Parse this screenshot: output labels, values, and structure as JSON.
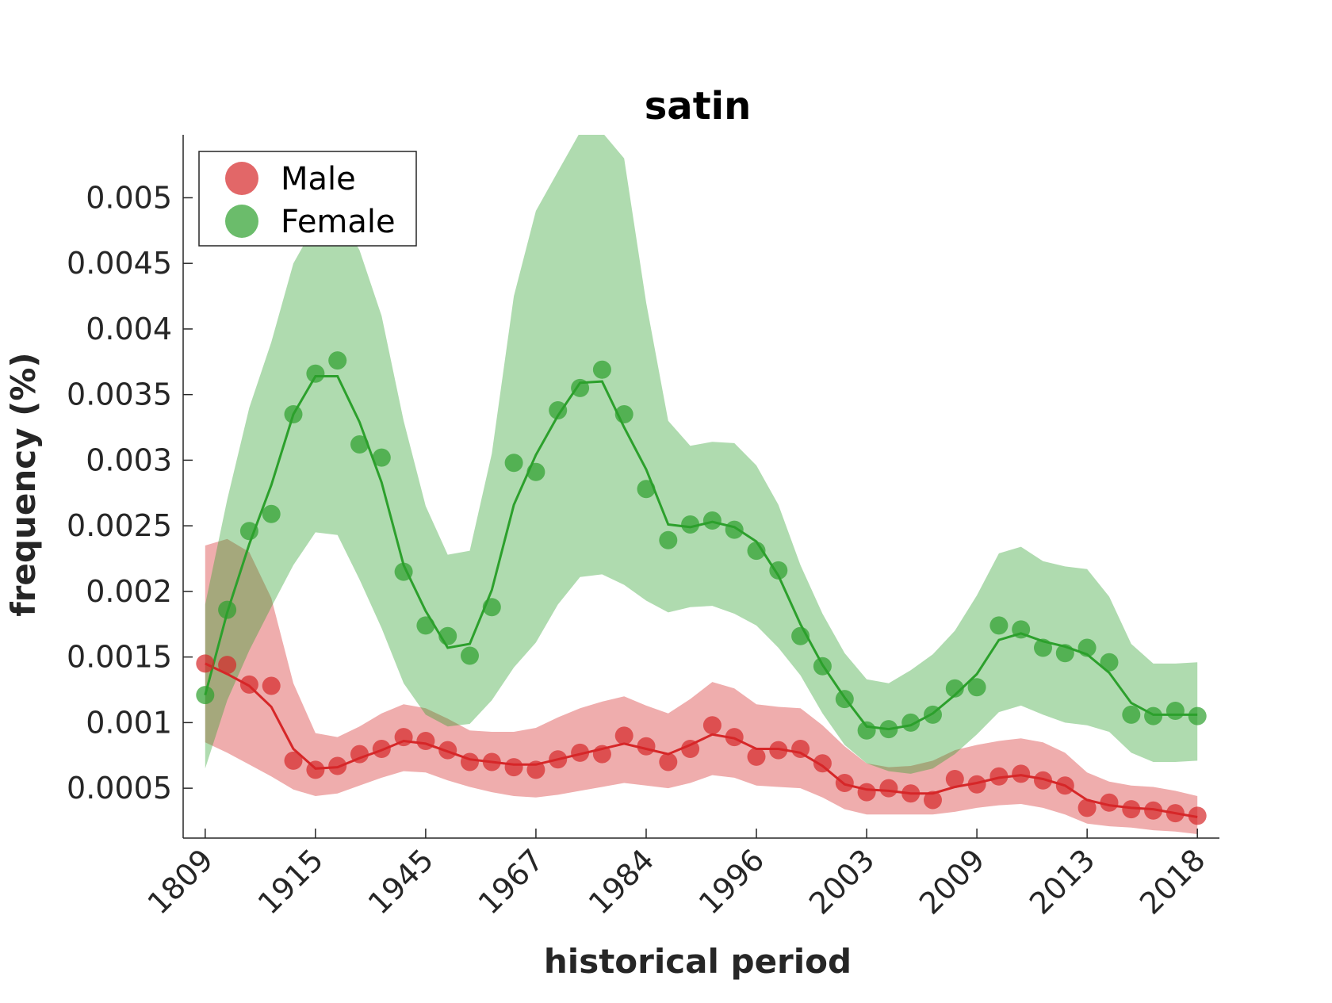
{
  "chart_data": {
    "type": "line",
    "title": "satin",
    "xlabel": "historical period",
    "ylabel": "frequency (%)",
    "x_tick_labels": [
      "1809",
      "1915",
      "1945",
      "1967",
      "1984",
      "1996",
      "2003",
      "2009",
      "2013",
      "2018"
    ],
    "y_ticks": [
      0.0005,
      0.001,
      0.0015,
      0.002,
      0.0025,
      0.003,
      0.0035,
      0.004,
      0.0045,
      0.005
    ],
    "y_tick_labels": [
      "0.0005",
      "0.001",
      "0.0015",
      "0.002",
      "0.0025",
      "0.003",
      "0.0035",
      "0.004",
      "0.0045",
      "0.005"
    ],
    "xlim": [
      -0.2,
      9.2
    ],
    "ylim": [
      0.00012,
      0.00548
    ],
    "grid": false,
    "legend_position": "top-left",
    "x_positions": [
      0,
      0.2,
      0.4,
      0.6,
      0.8,
      1.0,
      1.2,
      1.4,
      1.6,
      1.8,
      2.0,
      2.2,
      2.4,
      2.6,
      2.8,
      3.0,
      3.2,
      3.4,
      3.6,
      3.8,
      4.0,
      4.2,
      4.4,
      4.6,
      4.8,
      5.0,
      5.2,
      5.4,
      5.6,
      5.8,
      6.0,
      6.2,
      6.4,
      6.6,
      6.8,
      7.0,
      7.2,
      7.4,
      7.6,
      7.8,
      8.0,
      8.2,
      8.4,
      8.6,
      8.8,
      9.0
    ],
    "series": [
      {
        "name": "Male",
        "color": "#d62728",
        "points": [
          0.00145,
          0.00144,
          0.00129,
          0.00128,
          0.00071,
          0.00064,
          0.00067,
          0.00076,
          0.0008,
          0.00089,
          0.00086,
          0.00079,
          0.0007,
          0.0007,
          0.00066,
          0.00064,
          0.00072,
          0.00077,
          0.00076,
          0.0009,
          0.00082,
          0.0007,
          0.0008,
          0.00098,
          0.00089,
          0.00074,
          0.00079,
          0.0008,
          0.00069,
          0.00054,
          0.00047,
          0.0005,
          0.00046,
          0.00041,
          0.00057,
          0.00053,
          0.00059,
          0.00061,
          0.00056,
          0.00052,
          0.00035,
          0.00039,
          0.00034,
          0.00033,
          0.00031,
          0.00029
        ],
        "line": [
          0.00145,
          0.00137,
          0.00128,
          0.00112,
          0.0008,
          0.00065,
          0.00066,
          0.00073,
          0.00079,
          0.00086,
          0.00084,
          0.00078,
          0.00072,
          0.0007,
          0.00068,
          0.00068,
          0.00072,
          0.00076,
          0.0008,
          0.00084,
          0.0008,
          0.00076,
          0.00083,
          0.00091,
          0.00088,
          0.0008,
          0.0008,
          0.00077,
          0.00067,
          0.00053,
          0.00049,
          0.00048,
          0.00046,
          0.00046,
          0.00051,
          0.00054,
          0.00058,
          0.0006,
          0.00057,
          0.00052,
          0.00041,
          0.00037,
          0.00035,
          0.00034,
          0.00031,
          0.00028
        ],
        "band_upper": [
          0.00235,
          0.0024,
          0.0023,
          0.00195,
          0.0013,
          0.00092,
          0.00089,
          0.00097,
          0.00107,
          0.00114,
          0.00111,
          0.00103,
          0.00094,
          0.00093,
          0.00093,
          0.00096,
          0.00104,
          0.00111,
          0.00116,
          0.0012,
          0.00113,
          0.00107,
          0.00118,
          0.00131,
          0.00126,
          0.00114,
          0.00112,
          0.00111,
          0.00098,
          0.00082,
          0.00069,
          0.00066,
          0.00067,
          0.00071,
          0.00079,
          0.00083,
          0.00086,
          0.00088,
          0.00085,
          0.00077,
          0.00062,
          0.00055,
          0.00052,
          0.00051,
          0.00048,
          0.00044
        ],
        "band_lower": [
          0.00085,
          0.00077,
          0.00068,
          0.00059,
          0.00049,
          0.00044,
          0.00046,
          0.00052,
          0.00058,
          0.00063,
          0.00062,
          0.00056,
          0.00051,
          0.00047,
          0.00044,
          0.00043,
          0.00045,
          0.00048,
          0.00051,
          0.00054,
          0.00052,
          0.0005,
          0.00054,
          0.0006,
          0.00058,
          0.00052,
          0.00051,
          0.0005,
          0.00043,
          0.00034,
          0.0003,
          0.0003,
          0.0003,
          0.0003,
          0.00032,
          0.00035,
          0.00037,
          0.00038,
          0.00035,
          0.0003,
          0.00023,
          0.00021,
          0.0002,
          0.00018,
          0.00017,
          0.00015
        ]
      },
      {
        "name": "Female",
        "color": "#2ca02c",
        "points": [
          0.00121,
          0.00186,
          0.00246,
          0.00259,
          0.00335,
          0.00366,
          0.00376,
          0.00312,
          0.00302,
          0.00215,
          0.00174,
          0.00166,
          0.00151,
          0.00188,
          0.00298,
          0.00291,
          0.00338,
          0.00355,
          0.00369,
          0.00335,
          0.00278,
          0.00239,
          0.00251,
          0.00254,
          0.00247,
          0.00231,
          0.00216,
          0.00166,
          0.00143,
          0.00118,
          0.00094,
          0.00095,
          0.001,
          0.00106,
          0.00126,
          0.00127,
          0.00174,
          0.00171,
          0.00157,
          0.00153,
          0.00157,
          0.00146,
          0.00106,
          0.00105,
          0.00109,
          0.00105
        ],
        "line": [
          0.00121,
          0.00184,
          0.00236,
          0.00281,
          0.00335,
          0.00364,
          0.00364,
          0.00329,
          0.00283,
          0.0022,
          0.00185,
          0.00157,
          0.0016,
          0.00201,
          0.00266,
          0.00304,
          0.00334,
          0.00359,
          0.0036,
          0.00325,
          0.00293,
          0.00251,
          0.00249,
          0.00253,
          0.00249,
          0.00238,
          0.00212,
          0.00175,
          0.00144,
          0.00119,
          0.00097,
          0.00095,
          0.00098,
          0.00107,
          0.00121,
          0.00137,
          0.00163,
          0.00168,
          0.00162,
          0.00158,
          0.00152,
          0.00138,
          0.00115,
          0.00106,
          0.00106,
          0.00106
        ],
        "band_upper": [
          0.0019,
          0.0027,
          0.0034,
          0.0039,
          0.0045,
          0.0048,
          0.0049,
          0.0046,
          0.0041,
          0.0033,
          0.00265,
          0.00228,
          0.00231,
          0.00305,
          0.00425,
          0.0049,
          0.0052,
          0.0055,
          0.0055,
          0.0053,
          0.0042,
          0.0033,
          0.00311,
          0.00314,
          0.00313,
          0.00296,
          0.00266,
          0.0022,
          0.00183,
          0.00153,
          0.00133,
          0.0013,
          0.0014,
          0.00152,
          0.0017,
          0.00197,
          0.00229,
          0.00234,
          0.00223,
          0.00219,
          0.00217,
          0.00196,
          0.0016,
          0.00145,
          0.00145,
          0.00146
        ],
        "band_lower": [
          0.00065,
          0.00117,
          0.00155,
          0.00188,
          0.0022,
          0.00245,
          0.00243,
          0.00209,
          0.00172,
          0.0013,
          0.00106,
          0.00097,
          0.00099,
          0.00117,
          0.00142,
          0.00161,
          0.0019,
          0.00211,
          0.00213,
          0.00205,
          0.00193,
          0.00184,
          0.00188,
          0.00189,
          0.00183,
          0.00174,
          0.00157,
          0.00136,
          0.00107,
          0.00083,
          0.00069,
          0.00063,
          0.00061,
          0.00065,
          0.00076,
          0.00091,
          0.00108,
          0.00113,
          0.00106,
          0.001,
          0.00098,
          0.00093,
          0.00077,
          0.0007,
          0.0007,
          0.00071
        ]
      }
    ]
  }
}
